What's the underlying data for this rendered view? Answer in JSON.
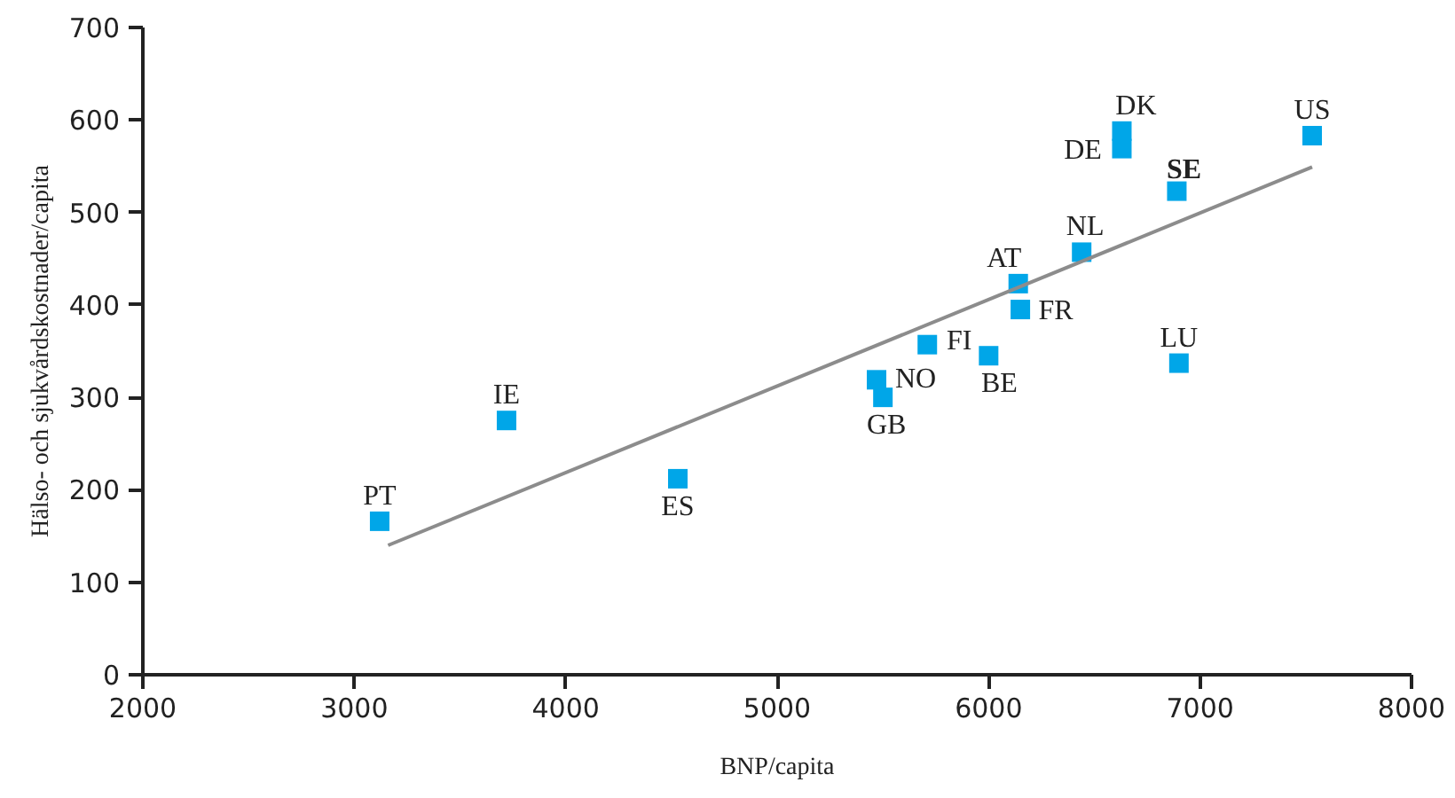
{
  "chart_data": {
    "type": "scatter",
    "xlabel": "BNP/capita",
    "ylabel": "Hälso- och sjukvårdskostnader/capita",
    "xlim": [
      2000,
      8000
    ],
    "xticks": [
      2000,
      3000,
      4000,
      5000,
      6000,
      7000,
      8000
    ],
    "ylim": [
      0,
      700
    ],
    "yticks": [
      0,
      100,
      200,
      300,
      400,
      500,
      600,
      700
    ],
    "grid": false,
    "series": [
      {
        "marker": "square",
        "color": "#00a6e8",
        "x": [
          3120,
          3720,
          4530,
          5470,
          5500,
          5710,
          6000,
          6150,
          6140,
          6440,
          6630,
          6630,
          6890,
          7530,
          6900
        ],
        "values": [
          166,
          275,
          212,
          319,
          300,
          357,
          345,
          395,
          423,
          457,
          588,
          569,
          523,
          583,
          337
        ],
        "value_labels": [
          "PT",
          "IE",
          "ES",
          "NO",
          "GB",
          "FI",
          "BE",
          "FR",
          "AT",
          "NL",
          "DK",
          "DE",
          "SE",
          "US",
          "LU"
        ]
      },
      {
        "type": "line",
        "color": "#8c8c8c",
        "x": [
          3160,
          7530
        ],
        "values": [
          140,
          549
        ]
      }
    ]
  }
}
